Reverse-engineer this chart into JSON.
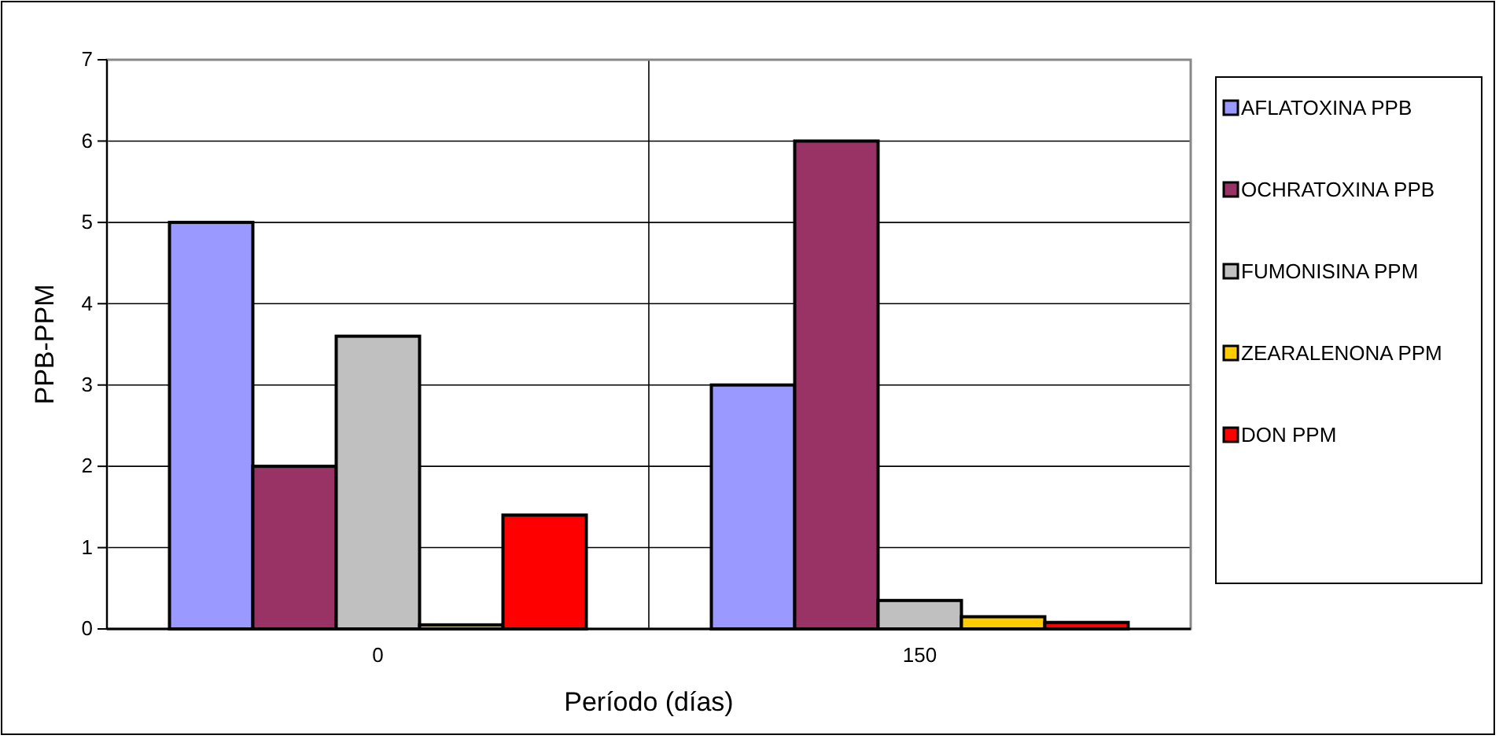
{
  "chart_data": {
    "type": "bar",
    "xlabel": "Período (días)",
    "ylabel": "PPB-PPM",
    "categories": [
      "0",
      "150"
    ],
    "series": [
      {
        "name": "AFLATOXINA PPB",
        "color": "#9999ff",
        "values": [
          5,
          3
        ]
      },
      {
        "name": "OCHRATOXINA PPB",
        "color": "#993366",
        "values": [
          2,
          6
        ]
      },
      {
        "name": "FUMONISINA PPM",
        "color": "#c0c0c0",
        "values": [
          3.6,
          0.35
        ]
      },
      {
        "name": "ZEARALENONA PPM",
        "color": "#ffcc00",
        "values": [
          0.05,
          0.15
        ]
      },
      {
        "name": "DON PPM",
        "color": "#ff0000",
        "values": [
          1.4,
          0.08
        ]
      }
    ],
    "ylim": [
      0,
      7
    ],
    "yticks": [
      0,
      1,
      2,
      3,
      4,
      5,
      6,
      7
    ],
    "grid": true,
    "legend": "right"
  }
}
